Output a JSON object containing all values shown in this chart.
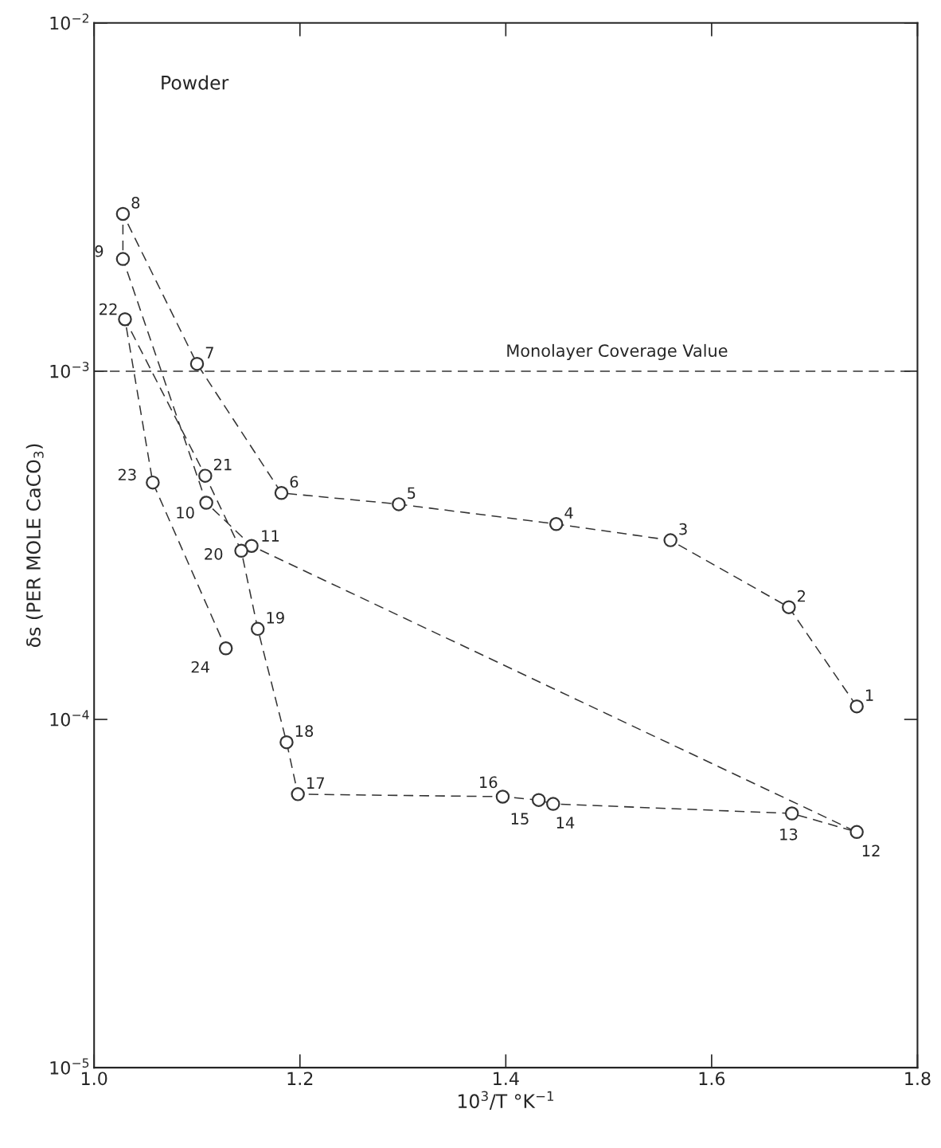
{
  "chart_data": {
    "type": "line",
    "xlabel": "10$^{3}$/T °K$^{−1}$",
    "ylabel": "δs (PER MOLE CaCO$_{3}$)",
    "log": "y",
    "grid": false,
    "marker": "circle",
    "line_style": "dashed",
    "xlim": [
      1.0,
      1.8
    ],
    "xticks": [
      {
        "value": 1.0,
        "label": "1.0"
      },
      1.2,
      1.4,
      1.6,
      1.8
    ],
    "ylim": [
      1e-05,
      0.01
    ],
    "yticks": [
      {
        "value": 1e-05,
        "label": "10$^{−5}$"
      },
      {
        "value": 0.0001,
        "label": "10$^{−4}$"
      },
      {
        "value": 0.001,
        "label": "10$^{−3}$"
      },
      {
        "value": 0.01,
        "label": "10$^{−2}$"
      }
    ],
    "series": [
      {
        "color": "#333333",
        "x": [
          1.741,
          1.675,
          1.56,
          1.449,
          1.296,
          1.182,
          1.1,
          1.028,
          1.028,
          1.109,
          1.153,
          1.741,
          1.678,
          1.446,
          1.432,
          1.397,
          1.198,
          1.187,
          1.159,
          1.143,
          1.108,
          1.03,
          1.057,
          1.128
        ],
        "values": [
          0.000109,
          0.00021,
          0.000327,
          0.000364,
          0.000415,
          0.000447,
          0.00105,
          0.00283,
          0.0021,
          0.000419,
          0.000315,
          4.75e-05,
          5.37e-05,
          5.72e-05,
          5.87e-05,
          6e-05,
          6.1e-05,
          8.6e-05,
          0.000182,
          0.000305,
          0.000501,
          0.00141,
          0.000479,
          0.00016
        ]
      }
    ],
    "ref_lines": [
      {
        "axis": "y",
        "value": 0.001,
        "label": "Monolayer Coverage Value",
        "line_style": "dashed",
        "color": "#333333"
      }
    ],
    "annotations": [
      "Powder",
      {
        "text": "1",
        "x": 1.741,
        "y": 0.000109
      },
      {
        "text": "2",
        "x": 1.675,
        "y": 0.00021
      },
      {
        "text": "3",
        "x": 1.56,
        "y": 0.000327
      },
      {
        "text": "4",
        "x": 1.449,
        "y": 0.000364
      },
      {
        "text": "5",
        "x": 1.296,
        "y": 0.000415
      },
      {
        "text": "6",
        "x": 1.182,
        "y": 0.000447
      },
      {
        "text": "7",
        "x": 1.1,
        "y": 0.00105
      },
      {
        "text": "8",
        "x": 1.028,
        "y": 0.00283
      },
      {
        "text": "9",
        "x": 1.028,
        "y": 0.0021
      },
      {
        "text": "10",
        "x": 1.109,
        "y": 0.000419
      },
      {
        "text": "11",
        "x": 1.153,
        "y": 0.000315
      },
      {
        "text": "12",
        "x": 1.741,
        "y": 4.75e-05
      },
      {
        "text": "13",
        "x": 1.678,
        "y": 5.37e-05
      },
      {
        "text": "14",
        "x": 1.446,
        "y": 5.72e-05
      },
      {
        "text": "15",
        "x": 1.432,
        "y": 5.87e-05
      },
      {
        "text": "16",
        "x": 1.397,
        "y": 6e-05
      },
      {
        "text": "17",
        "x": 1.198,
        "y": 6.1e-05
      },
      {
        "text": "18",
        "x": 1.187,
        "y": 8.6e-05
      },
      {
        "text": "19",
        "x": 1.159,
        "y": 0.000182
      },
      {
        "text": "20",
        "x": 1.143,
        "y": 0.000305
      },
      {
        "text": "21",
        "x": 1.108,
        "y": 0.000501
      },
      {
        "text": "22",
        "x": 1.03,
        "y": 0.00141
      },
      {
        "text": "23",
        "x": 1.057,
        "y": 0.000479
      },
      {
        "text": "24",
        "x": 1.128,
        "y": 0.00016
      }
    ]
  }
}
